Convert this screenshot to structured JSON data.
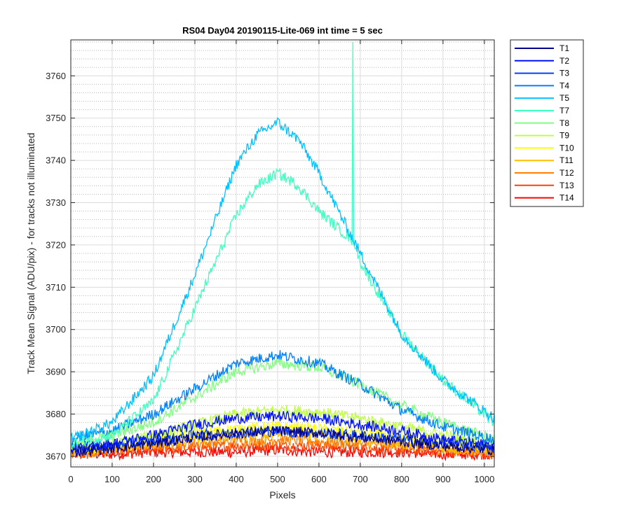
{
  "chart_data": {
    "type": "line",
    "title": "RS04 Day04 20190115-Lite-069 int time = 5 sec",
    "xlabel": "Pixels",
    "ylabel": "Track Mean Signal (ADU/pix) - for tracks not illuminated",
    "xlim": [
      0,
      1024
    ],
    "ylim": [
      3667.5,
      3768.5
    ],
    "xticks": [
      0,
      100,
      200,
      300,
      400,
      500,
      600,
      700,
      800,
      900,
      1000
    ],
    "yticks": [
      3670,
      3680,
      3690,
      3700,
      3710,
      3720,
      3730,
      3740,
      3750,
      3760
    ],
    "grid": true,
    "minor_grid": true,
    "legend_position": "outside-top-right",
    "series": [
      {
        "name": "T1",
        "color": "#00008f",
        "x": [
          0,
          100,
          200,
          300,
          400,
          500,
          600,
          700,
          800,
          900,
          1024
        ],
        "values": [
          3671,
          3672,
          3673,
          3674.5,
          3675.5,
          3676,
          3675.5,
          3674.5,
          3673.5,
          3672.5,
          3671.5
        ]
      },
      {
        "name": "T2",
        "color": "#0010ff",
        "x": [
          0,
          100,
          200,
          300,
          400,
          500,
          600,
          700,
          800,
          900,
          1024
        ],
        "values": [
          3672,
          3673,
          3675,
          3677.5,
          3679,
          3679.5,
          3679,
          3677.5,
          3676,
          3674,
          3672.5
        ]
      },
      {
        "name": "T3",
        "color": "#0040ff",
        "x": [
          0,
          100,
          200,
          300,
          400,
          500,
          600,
          700,
          800,
          900,
          1024
        ],
        "values": [
          3672,
          3672.5,
          3673.5,
          3675,
          3675.5,
          3676,
          3675.5,
          3675,
          3674,
          3673,
          3672
        ]
      },
      {
        "name": "T4",
        "color": "#0080ff",
        "x": [
          0,
          100,
          200,
          300,
          400,
          500,
          600,
          700,
          800,
          900,
          1024
        ],
        "values": [
          3674,
          3676,
          3680,
          3686,
          3692,
          3694,
          3692,
          3687,
          3681,
          3677,
          3674
        ]
      },
      {
        "name": "T5",
        "color": "#00c0ff",
        "x": [
          0,
          100,
          200,
          300,
          400,
          450,
          500,
          550,
          600,
          700,
          800,
          900,
          1024
        ],
        "values": [
          3674,
          3678,
          3689,
          3713,
          3739,
          3746,
          3749,
          3745,
          3737,
          3718,
          3699,
          3688,
          3679
        ]
      },
      {
        "name": "T7",
        "color": "#40ffbf",
        "x": [
          0,
          100,
          200,
          300,
          400,
          450,
          500,
          550,
          600,
          681,
          682,
          683,
          684,
          700,
          800,
          900,
          1024
        ],
        "values": [
          3673,
          3675,
          3683,
          3705,
          3727,
          3734,
          3737,
          3734,
          3728,
          3721,
          3768,
          3768,
          3721,
          3716,
          3699,
          3688,
          3678
        ]
      },
      {
        "name": "T8",
        "color": "#80ff80",
        "x": [
          0,
          100,
          200,
          300,
          400,
          500,
          600,
          700,
          800,
          900,
          1024
        ],
        "values": [
          3673,
          3675,
          3678,
          3684,
          3690,
          3692,
          3691,
          3687,
          3682,
          3678,
          3674
        ]
      },
      {
        "name": "T9",
        "color": "#bfff40",
        "x": [
          0,
          100,
          200,
          300,
          400,
          500,
          600,
          700,
          800,
          900,
          1024
        ],
        "values": [
          3672,
          3673,
          3675,
          3677.5,
          3680,
          3681,
          3680.5,
          3679,
          3677,
          3675,
          3672.5
        ]
      },
      {
        "name": "T10",
        "color": "#ffff00",
        "x": [
          0,
          100,
          200,
          300,
          400,
          500,
          600,
          700,
          800,
          900,
          1024
        ],
        "values": [
          3671.5,
          3672.5,
          3674,
          3675.5,
          3676.5,
          3677,
          3676.5,
          3675.5,
          3674.5,
          3673.5,
          3672
        ]
      },
      {
        "name": "T11",
        "color": "#ffbf00",
        "x": [
          0,
          100,
          200,
          300,
          400,
          500,
          600,
          700,
          800,
          900,
          1024
        ],
        "values": [
          3671,
          3672,
          3673,
          3674,
          3675,
          3675.5,
          3675,
          3674,
          3673,
          3672,
          3671
        ]
      },
      {
        "name": "T12",
        "color": "#ff8000",
        "x": [
          0,
          100,
          200,
          300,
          400,
          500,
          600,
          700,
          800,
          900,
          1024
        ],
        "values": [
          3670.5,
          3671.5,
          3672.5,
          3673,
          3673.5,
          3674,
          3673.5,
          3673,
          3672.5,
          3671.5,
          3671
        ]
      },
      {
        "name": "T13",
        "color": "#ff4000",
        "x": [
          0,
          100,
          200,
          300,
          400,
          500,
          600,
          700,
          800,
          900,
          1024
        ],
        "values": [
          3670.5,
          3671,
          3671.5,
          3672,
          3672.5,
          3672.5,
          3672.5,
          3672,
          3671.5,
          3671,
          3670.5
        ]
      },
      {
        "name": "T14",
        "color": "#ff0000",
        "x": [
          0,
          100,
          200,
          300,
          400,
          500,
          600,
          700,
          800,
          900,
          1024
        ],
        "values": [
          3670.5,
          3670.5,
          3671,
          3671,
          3671,
          3671.5,
          3671,
          3671,
          3671,
          3670.5,
          3670.5
        ]
      }
    ]
  }
}
